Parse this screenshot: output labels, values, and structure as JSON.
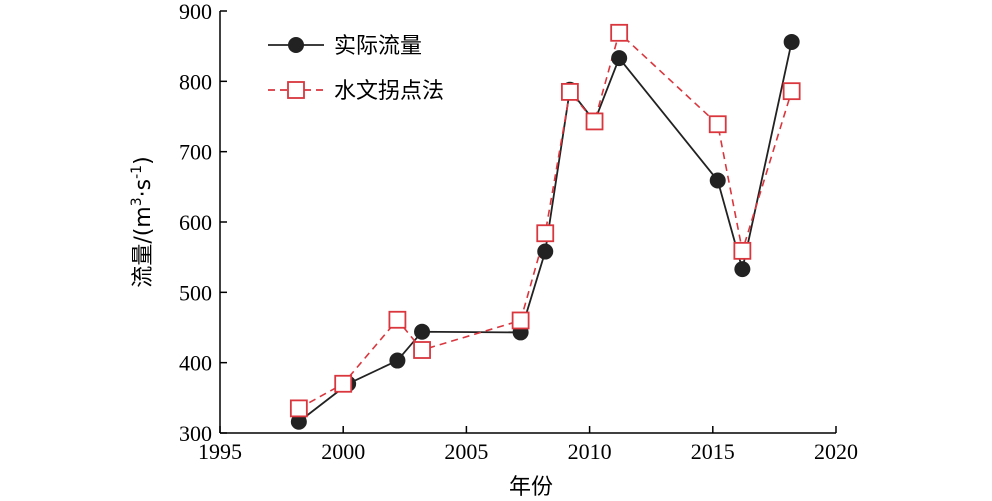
{
  "chart_data": {
    "type": "line",
    "xlabel": "年份",
    "ylabel_main": "流量/(m",
    "ylabel_sup1": "3",
    "ylabel_mid": "·s",
    "ylabel_sup2": "-1",
    "ylabel_end": ")",
    "xlim": [
      1995,
      2020
    ],
    "ylim": [
      300,
      900
    ],
    "x_ticks": [
      "1995",
      "2000",
      "2005",
      "2010",
      "2015",
      "2020"
    ],
    "y_ticks": [
      "300",
      "400",
      "500",
      "600",
      "700",
      "800",
      "900"
    ],
    "legend_position": "top-left",
    "grid": false,
    "series": [
      {
        "name": "实际流量",
        "color": "#222222",
        "line_style": "solid",
        "marker": "filled-circle",
        "points": [
          {
            "x": 1998.2,
            "y": 316
          },
          {
            "x": 2000.2,
            "y": 370
          },
          {
            "x": 2002.2,
            "y": 403
          },
          {
            "x": 2003.2,
            "y": 444
          },
          {
            "x": 2007.2,
            "y": 443
          },
          {
            "x": 2008.2,
            "y": 558
          },
          {
            "x": 2009.2,
            "y": 788
          },
          {
            "x": 2010.2,
            "y": 743
          },
          {
            "x": 2011.2,
            "y": 833
          },
          {
            "x": 2015.2,
            "y": 659
          },
          {
            "x": 2016.2,
            "y": 533
          },
          {
            "x": 2018.2,
            "y": 856
          }
        ]
      },
      {
        "name": "水文拐点法",
        "color": "#d9363e",
        "line_style": "dashed",
        "marker": "open-square",
        "points": [
          {
            "x": 1998.2,
            "y": 335
          },
          {
            "x": 2000.0,
            "y": 370
          },
          {
            "x": 2002.2,
            "y": 461
          },
          {
            "x": 2003.2,
            "y": 418
          },
          {
            "x": 2007.2,
            "y": 460
          },
          {
            "x": 2008.2,
            "y": 584
          },
          {
            "x": 2009.2,
            "y": 785
          },
          {
            "x": 2010.2,
            "y": 743
          },
          {
            "x": 2011.2,
            "y": 869
          },
          {
            "x": 2015.2,
            "y": 739
          },
          {
            "x": 2016.2,
            "y": 559
          },
          {
            "x": 2018.2,
            "y": 786
          }
        ]
      }
    ]
  }
}
